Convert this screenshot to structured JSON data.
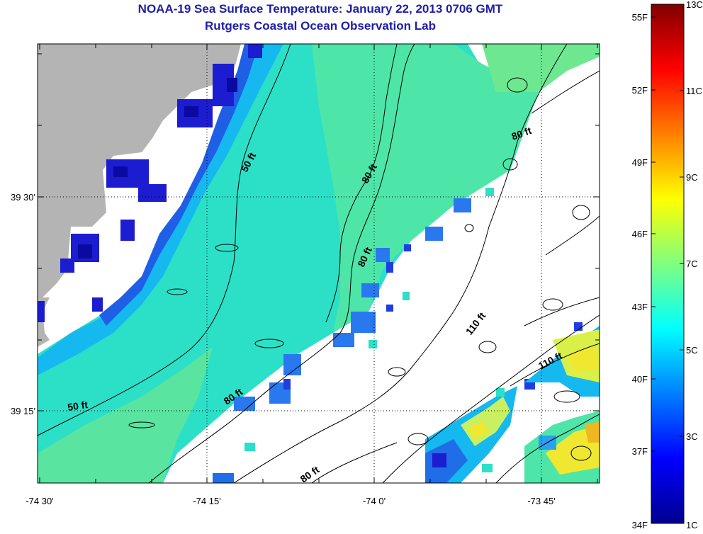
{
  "title": "NOAA-19 Sea Surface Temperature:  January 22, 2013 0706 GMT",
  "subtitle": "Rutgers Coastal Ocean Observation Lab",
  "x_tick_labels": [
    "-74 30'",
    "-74 15'",
    "-74 0'",
    "-73 45'"
  ],
  "y_tick_labels": [
    "39 30'",
    "39 15'"
  ],
  "isobath_labels": [
    {
      "text": "50 ft",
      "angle": -62
    },
    {
      "text": "50 ft",
      "angle": -8
    },
    {
      "text": "80 ft",
      "angle": -60
    },
    {
      "text": "80 ft",
      "angle": -65
    },
    {
      "text": "80 ft",
      "angle": -35
    },
    {
      "text": "80 ft",
      "angle": -35
    },
    {
      "text": "80 ft",
      "angle": -20
    },
    {
      "text": "110 ft",
      "angle": -52
    },
    {
      "text": "110 ft",
      "angle": -28
    }
  ],
  "colorbar": {
    "fahrenheit_labels": [
      "55F",
      "52F",
      "49F",
      "46F",
      "43F",
      "40F",
      "37F",
      "34F"
    ],
    "celsius_labels": [
      "13C",
      "11C",
      "9C",
      "7C",
      "5C",
      "3C",
      "1C"
    ],
    "range_celsius": [
      1,
      13
    ],
    "colormap": "jet"
  },
  "colors": {
    "land": "#b4b4b4",
    "no_data": "#ffffff",
    "title": "#1e1ea8"
  }
}
